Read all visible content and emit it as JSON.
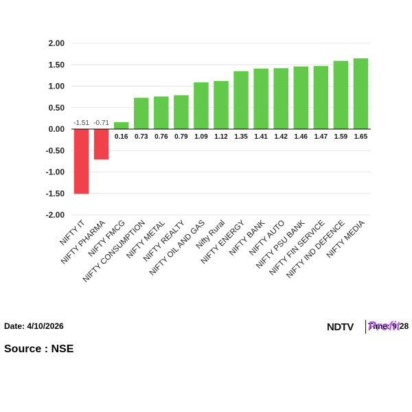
{
  "chart_data": {
    "type": "bar",
    "categories": [
      "NIFTY IT",
      "NIFTY PHARMA",
      "NIFTY FMCG",
      "NIFTY CONSUMPTION",
      "NIFTY METAL",
      "NIFTY REALTY",
      "NIFTY OIL AND GAS",
      "Nifty Rural",
      "NIFTY ENERGY",
      "NIFTY BANK",
      "NIFTY AUTO",
      "NIFTY PSU BANK",
      "NIFTY FIN SERVICE",
      "NIFTY IND DEFENCE",
      "NIFTY MEDIA"
    ],
    "values": [
      -1.51,
      -0.71,
      0.16,
      0.73,
      0.76,
      0.79,
      1.09,
      1.12,
      1.35,
      1.41,
      1.42,
      1.46,
      1.47,
      1.59,
      1.65
    ],
    "data_labels": [
      "-1.51",
      "-0.71",
      "0.16",
      "0.73",
      "0.76",
      "0.79",
      "1.09",
      "1.12",
      "1.35",
      "1.41",
      "1.42",
      "1.46",
      "1.47",
      "1.59",
      "1.65"
    ],
    "y_ticks": [
      "2.00",
      "1.50",
      "1.00",
      "0.50",
      "0.00",
      "-0.50",
      "-1.00",
      "-1.50",
      "-2.00"
    ],
    "ylim": [
      -2,
      2
    ],
    "grid": true,
    "colors": {
      "positive": "#63c94a",
      "negative": "#f0424a",
      "grid": "#e4e4e4",
      "axis": "#000000"
    }
  },
  "footer": {
    "date": "Date: 4/10/2026",
    "source": "Source : NSE",
    "logo_ndtv": "NDTV",
    "logo_profit": "Profit",
    "time_text": "Time: 9:28"
  }
}
